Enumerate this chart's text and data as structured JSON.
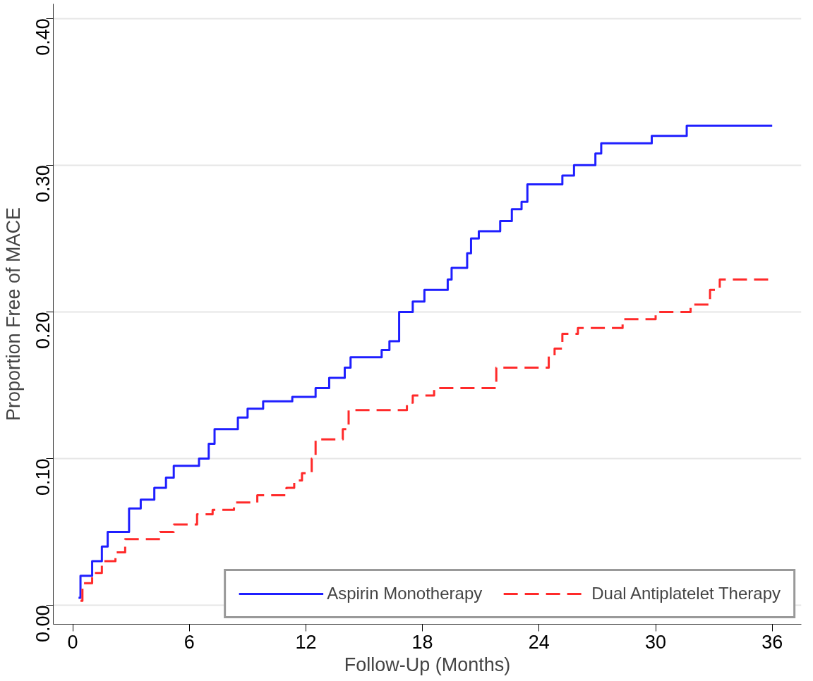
{
  "chart_data": {
    "type": "step",
    "xlabel": "Follow-Up (Months)",
    "ylabel": "Proportion Free of MACE",
    "series": [
      {
        "name": "Aspirin Monotherapy",
        "color": "#1f1fff",
        "line_style": "solid",
        "x": [
          0.3,
          0.4,
          1.0,
          1.5,
          1.8,
          2.9,
          3.5,
          4.2,
          4.8,
          5.2,
          6.5,
          7.0,
          7.3,
          8.5,
          9.0,
          9.8,
          11.3,
          12.5,
          13.2,
          14.0,
          14.3,
          15.9,
          16.3,
          16.8,
          17.5,
          18.1,
          19.3,
          19.5,
          20.3,
          20.5,
          20.9,
          22.0,
          22.6,
          23.1,
          23.4,
          25.2,
          25.8,
          26.9,
          27.2,
          29.8,
          31.6,
          36.0
        ],
        "values": [
          0.005,
          0.02,
          0.03,
          0.04,
          0.05,
          0.066,
          0.072,
          0.08,
          0.087,
          0.095,
          0.1,
          0.11,
          0.12,
          0.128,
          0.134,
          0.139,
          0.142,
          0.148,
          0.155,
          0.162,
          0.169,
          0.174,
          0.18,
          0.2,
          0.207,
          0.215,
          0.222,
          0.23,
          0.24,
          0.25,
          0.255,
          0.262,
          0.27,
          0.275,
          0.287,
          0.293,
          0.3,
          0.308,
          0.315,
          0.32,
          0.327,
          0.327
        ]
      },
      {
        "name": "Dual Antiplatelet Therapy",
        "color": "#ff2a2a",
        "line_style": "dashed",
        "x": [
          0.4,
          0.5,
          1.0,
          1.5,
          2.2,
          2.7,
          4.5,
          5.2,
          6.4,
          7.2,
          8.3,
          9.5,
          11.0,
          11.4,
          11.8,
          12.3,
          12.5,
          13.9,
          14.2,
          17.2,
          17.5,
          18.6,
          21.8,
          24.5,
          24.8,
          25.2,
          26.0,
          28.3,
          30.0,
          31.8,
          32.8,
          33.3,
          36.0
        ],
        "values": [
          0.003,
          0.015,
          0.022,
          0.03,
          0.036,
          0.045,
          0.05,
          0.055,
          0.062,
          0.065,
          0.07,
          0.075,
          0.08,
          0.085,
          0.09,
          0.1,
          0.113,
          0.12,
          0.133,
          0.138,
          0.143,
          0.148,
          0.162,
          0.17,
          0.175,
          0.185,
          0.189,
          0.195,
          0.2,
          0.205,
          0.215,
          0.222,
          0.222
        ]
      }
    ],
    "xlim": [
      -1,
      37.5
    ],
    "ylim": [
      -0.013,
      0.41
    ],
    "xticks": [
      0,
      6,
      12,
      18,
      24,
      30,
      36
    ],
    "yticks": [
      {
        "value": 0,
        "label": "0.00"
      },
      {
        "value": 0.1,
        "label": "0.10"
      },
      {
        "value": 0.2,
        "label": "0.20"
      },
      {
        "value": 0.3,
        "label": "0.30"
      },
      {
        "value": 0.4,
        "label": "0.40"
      }
    ],
    "grid": "y",
    "legend": "bottom"
  }
}
